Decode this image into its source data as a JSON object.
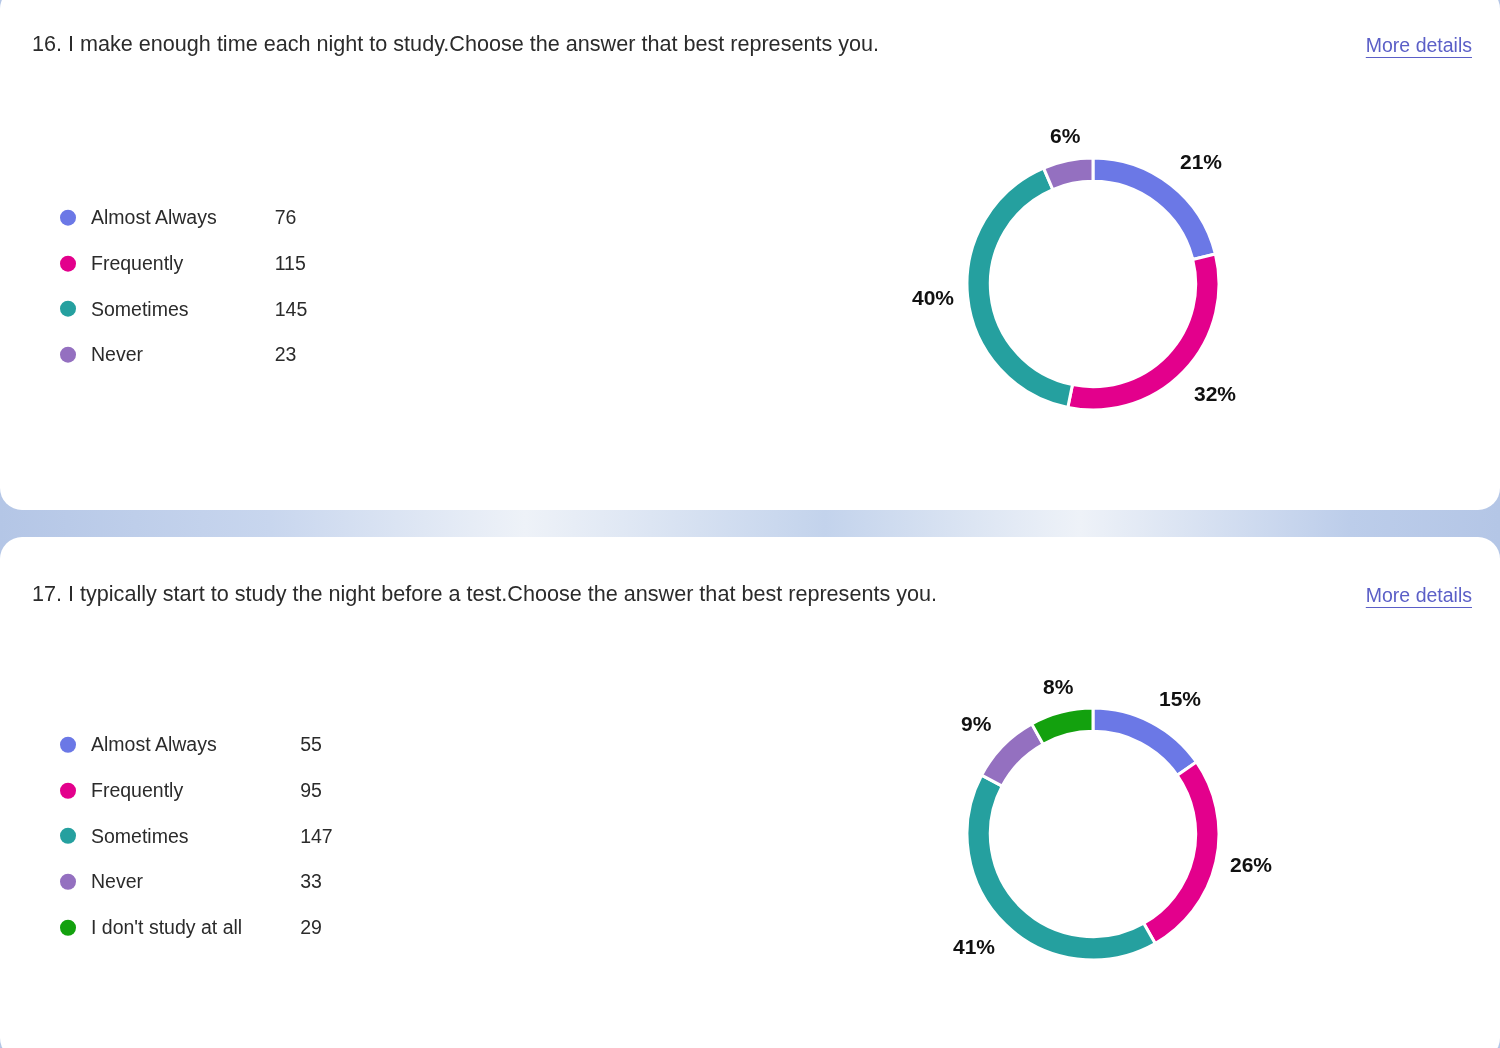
{
  "chart_data": [
    {
      "type": "donut",
      "title": "16. I make enough time each night to study.Choose the answer that best represents you.",
      "categories": [
        "Almost Always",
        "Frequently",
        "Sometimes",
        "Never"
      ],
      "values": [
        76,
        115,
        145,
        23
      ],
      "colors": [
        "#6b78e6",
        "#e3008c",
        "#25a09f",
        "#9470c0"
      ],
      "data_labels": true,
      "legend": "left",
      "annotations": [
        "More details",
        {
          "text": "21%",
          "x": "Almost Always"
        },
        {
          "text": "32%",
          "x": "Frequently"
        },
        {
          "text": "40%",
          "x": "Sometimes"
        },
        {
          "text": "6%",
          "x": "Never"
        }
      ]
    },
    {
      "type": "donut",
      "title": "17. I typically start to study the night before a test.Choose the answer that best represents you.",
      "categories": [
        "Almost Always",
        "Frequently",
        "Sometimes",
        "Never",
        "I don't study at all"
      ],
      "values": [
        55,
        95,
        147,
        33,
        29
      ],
      "colors": [
        "#6b78e6",
        "#e3008c",
        "#25a09f",
        "#9470c0",
        "#13a10e"
      ],
      "data_labels": true,
      "legend": "left",
      "annotations": [
        "More details",
        {
          "text": "15%",
          "x": "Almost Always"
        },
        {
          "text": "26%",
          "x": "Frequently"
        },
        {
          "text": "41%",
          "x": "Sometimes"
        },
        {
          "text": "9%",
          "x": "Never"
        },
        {
          "text": "8%",
          "x": "I don't study at all"
        }
      ]
    }
  ]
}
